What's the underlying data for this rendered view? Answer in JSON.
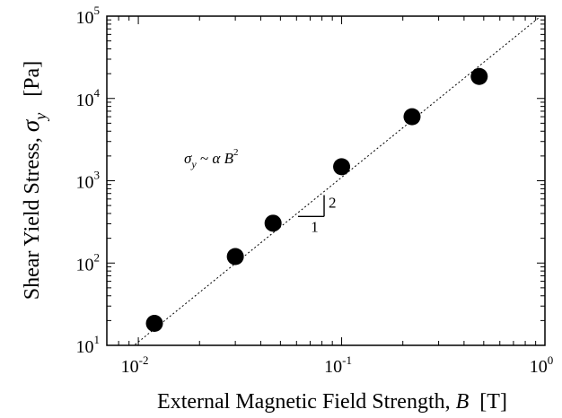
{
  "chart_data": {
    "type": "scatter",
    "xscale": "log",
    "yscale": "log",
    "xlim": [
      0.007,
      1
    ],
    "ylim": [
      10,
      100000
    ],
    "grid": false,
    "xlabel": {
      "prefix": "External Magnetic Field Strength, ",
      "var": "B",
      "unit": "[T]"
    },
    "ylabel": {
      "prefix": "Shear Yield Stress, ",
      "var": "σ",
      "sub": "y",
      "unit": "[Pa]"
    },
    "x_ticks": [
      {
        "value": 0.01,
        "base": "10",
        "exp": "-2"
      },
      {
        "value": 0.1,
        "base": "10",
        "exp": "-1"
      },
      {
        "value": 1,
        "base": "10",
        "exp": "0"
      }
    ],
    "y_ticks": [
      {
        "value": 10,
        "base": "10",
        "exp": "1"
      },
      {
        "value": 100,
        "base": "10",
        "exp": "2"
      },
      {
        "value": 1000,
        "base": "10",
        "exp": "3"
      },
      {
        "value": 10000,
        "base": "10",
        "exp": "4"
      },
      {
        "value": 100000,
        "base": "10",
        "exp": "5"
      }
    ],
    "points": [
      {
        "x": 0.012,
        "y": 18.5
      },
      {
        "x": 0.03,
        "y": 120
      },
      {
        "x": 0.046,
        "y": 305
      },
      {
        "x": 0.1,
        "y": 1480
      },
      {
        "x": 0.222,
        "y": 6000
      },
      {
        "x": 0.475,
        "y": 18500
      }
    ],
    "fit_line": {
      "relation": "σ_y ~ α B^2",
      "slope": 2,
      "x_range": [
        0.007,
        1
      ],
      "y_at_x1": 110000
    },
    "annotations": {
      "equation": {
        "sigma": "σ",
        "sub": "y",
        "tilde": " ~ ",
        "alpha": "α",
        "B": " B",
        "sup": "2"
      },
      "slope_triangle": {
        "run_label": "1",
        "rise_label": "2",
        "x_start": 0.061,
        "x_end": 0.082
      }
    },
    "colors": {
      "marker": "#000000",
      "line": "#000000",
      "axes": "#000000"
    }
  }
}
